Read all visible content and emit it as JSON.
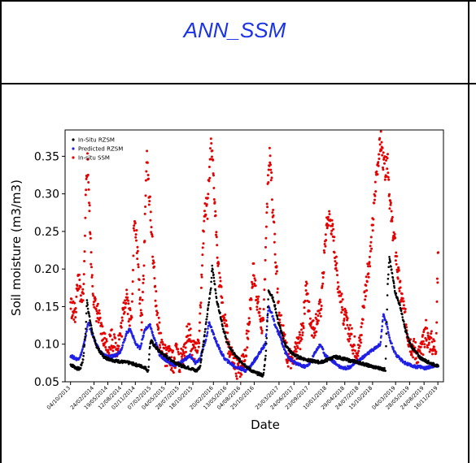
{
  "table": {
    "header": "ANN_SSM"
  },
  "chart_data": {
    "type": "scatter",
    "title": "",
    "xlabel": "Date",
    "ylabel": "Soil moisture (m3/m3)",
    "ylim": [
      0.05,
      0.385
    ],
    "xlim": [
      "2013-09-01",
      "2019-12-20"
    ],
    "yticks": [
      0.05,
      0.1,
      0.15,
      0.2,
      0.25,
      0.3,
      0.35
    ],
    "ytick_labels": [
      "0.05",
      "0.10",
      "0.15",
      "0.20",
      "0.25",
      "0.30",
      "0.35"
    ],
    "xticks": [
      "2013-10-04",
      "2014-02-24",
      "2014-05-19",
      "2014-08-12",
      "2014-11-02",
      "2015-02-07",
      "2015-05-04",
      "2015-07-28",
      "2015-10-18",
      "2016-02-20",
      "2016-05-13",
      "2016-08-04",
      "2016-10-25",
      "2017-03-25",
      "2017-06-24",
      "2017-09-23",
      "2018-01-10",
      "2018-04-29",
      "2018-07-24",
      "2018-10-15",
      "2019-03-04",
      "2019-05-28",
      "2019-08-24",
      "2019-11-16"
    ],
    "xtick_labels": [
      "04/10/2013",
      "24/02/2014",
      "19/05/2014",
      "12/08/2014",
      "02/11/2014",
      "07/02/2015",
      "04/05/2015",
      "28/07/2015",
      "18/10/2015",
      "20/02/2016",
      "13/05/2016",
      "04/08/2016",
      "25/10/2016",
      "25/03/2017",
      "24/06/2017",
      "23/09/2017",
      "10/01/2018",
      "29/04/2018",
      "24/07/2018",
      "15/10/2018",
      "04/03/2019",
      "28/05/2019",
      "24/08/2019",
      "16/11/2019"
    ],
    "legend_position": "top-left",
    "grid": false,
    "series": [
      {
        "name": "In-Situ RZSM",
        "color": "#000000",
        "marker_size": 1.3,
        "x": [
          "2013-10-04",
          "2013-10-20",
          "2013-11-10",
          "2013-12-01",
          "2013-12-20",
          "2014-01-05",
          "2014-01-12",
          "2014-01-20",
          "2014-02-01",
          "2014-02-15",
          "2014-03-05",
          "2014-04-01",
          "2014-05-01",
          "2014-06-01",
          "2014-07-01",
          "2014-08-01",
          "2014-09-01",
          "2014-10-01",
          "2014-11-01",
          "2014-12-01",
          "2015-01-01",
          "2015-01-20",
          "2015-01-28",
          "2015-02-05",
          "2015-02-20",
          "2015-03-10",
          "2015-04-01",
          "2015-05-01",
          "2015-06-01",
          "2015-07-01",
          "2015-08-01",
          "2015-09-01",
          "2015-10-01",
          "2015-10-25",
          "2015-11-05",
          "2015-12-01",
          "2015-12-20",
          "2016-01-05",
          "2016-01-20",
          "2016-02-05",
          "2016-02-12",
          "2016-02-25",
          "2016-03-10",
          "2016-04-01",
          "2016-04-20",
          "2016-05-10",
          "2016-06-01",
          "2016-07-01",
          "2016-08-01",
          "2016-09-01",
          "2016-10-01",
          "2016-11-01",
          "2016-12-01",
          "2016-12-20",
          "2017-01-05",
          "2017-01-20",
          "2017-02-10",
          "2017-03-01",
          "2017-03-20",
          "2017-04-10",
          "2017-05-01",
          "2017-06-01",
          "2017-07-01",
          "2017-08-01",
          "2017-09-01",
          "2017-10-01",
          "2017-11-01",
          "2017-12-01",
          "2018-01-01",
          "2018-02-01",
          "2018-03-01",
          "2018-04-01",
          "2018-05-01",
          "2018-06-01",
          "2018-07-01",
          "2018-08-01",
          "2018-09-01",
          "2018-10-01",
          "2018-11-01",
          "2018-12-01",
          "2018-12-15",
          "2019-01-01",
          "2019-01-15",
          "2019-01-25",
          "2019-02-10",
          "2019-03-01",
          "2019-04-01",
          "2019-05-01",
          "2019-06-01",
          "2019-07-01",
          "2019-08-01",
          "2019-09-01",
          "2019-10-01",
          "2019-11-01",
          "2019-11-20"
        ],
        "y": [
          0.073,
          0.071,
          0.068,
          0.067,
          0.08,
          0.12,
          0.16,
          0.145,
          0.13,
          0.115,
          0.1,
          0.09,
          0.082,
          0.08,
          0.078,
          0.077,
          0.076,
          0.075,
          0.073,
          0.071,
          0.069,
          0.064,
          0.095,
          0.105,
          0.1,
          0.095,
          0.09,
          0.085,
          0.08,
          0.076,
          0.072,
          0.07,
          0.068,
          0.066,
          0.064,
          0.07,
          0.1,
          0.125,
          0.15,
          0.175,
          0.205,
          0.185,
          0.16,
          0.14,
          0.12,
          0.105,
          0.095,
          0.085,
          0.078,
          0.072,
          0.066,
          0.062,
          0.06,
          0.058,
          0.09,
          0.17,
          0.165,
          0.15,
          0.13,
          0.115,
          0.1,
          0.09,
          0.085,
          0.082,
          0.08,
          0.078,
          0.077,
          0.076,
          0.078,
          0.081,
          0.083,
          0.082,
          0.08,
          0.078,
          0.077,
          0.075,
          0.073,
          0.071,
          0.069,
          0.068,
          0.067,
          0.066,
          0.18,
          0.215,
          0.195,
          0.17,
          0.15,
          0.12,
          0.1,
          0.09,
          0.082,
          0.078,
          0.075,
          0.072,
          0.07
        ]
      },
      {
        "name": "Predicted RZSM",
        "color": "#1f1fe6",
        "marker_size": 1.3,
        "x": [
          "2013-10-04",
          "2013-10-25",
          "2013-11-15",
          "2013-12-05",
          "2013-12-25",
          "2014-01-08",
          "2014-01-20",
          "2014-02-01",
          "2014-02-20",
          "2014-03-10",
          "2014-04-01",
          "2014-05-01",
          "2014-06-01",
          "2014-07-01",
          "2014-08-01",
          "2014-08-20",
          "2014-09-10",
          "2014-10-01",
          "2014-10-20",
          "2014-11-05",
          "2014-12-01",
          "2015-01-01",
          "2015-02-01",
          "2015-02-20",
          "2015-03-10",
          "2015-04-01",
          "2015-05-01",
          "2015-06-01",
          "2015-07-01",
          "2015-08-01",
          "2015-09-01",
          "2015-10-01",
          "2015-11-01",
          "2015-12-01",
          "2015-12-20",
          "2016-01-10",
          "2016-01-25",
          "2016-02-10",
          "2016-02-25",
          "2016-03-15",
          "2016-04-05",
          "2016-05-01",
          "2016-06-01",
          "2016-07-01",
          "2016-08-01",
          "2016-09-01",
          "2016-10-01",
          "2016-11-01",
          "2016-12-01",
          "2017-01-01",
          "2017-01-20",
          "2017-02-10",
          "2017-03-01",
          "2017-04-01",
          "2017-05-01",
          "2017-06-01",
          "2017-07-01",
          "2017-08-01",
          "2017-09-01",
          "2017-10-01",
          "2017-11-01",
          "2017-12-01",
          "2018-01-01",
          "2018-02-01",
          "2018-03-01",
          "2018-04-01",
          "2018-05-01",
          "2018-06-01",
          "2018-07-01",
          "2018-08-01",
          "2018-09-01",
          "2018-10-01",
          "2018-11-01",
          "2018-12-01",
          "2018-12-20",
          "2019-01-10",
          "2019-01-25",
          "2019-02-15",
          "2019-03-10",
          "2019-04-01",
          "2019-05-01",
          "2019-06-01",
          "2019-07-01",
          "2019-08-01",
          "2019-09-01",
          "2019-10-01",
          "2019-11-01",
          "2019-11-20"
        ],
        "y": [
          0.085,
          0.082,
          0.08,
          0.085,
          0.1,
          0.115,
          0.13,
          0.12,
          0.11,
          0.1,
          0.09,
          0.085,
          0.083,
          0.085,
          0.09,
          0.1,
          0.115,
          0.12,
          0.11,
          0.1,
          0.095,
          0.12,
          0.125,
          0.11,
          0.1,
          0.085,
          0.08,
          0.075,
          0.072,
          0.075,
          0.08,
          0.085,
          0.075,
          0.08,
          0.095,
          0.11,
          0.13,
          0.12,
          0.11,
          0.1,
          0.09,
          0.08,
          0.075,
          0.07,
          0.068,
          0.065,
          0.07,
          0.08,
          0.09,
          0.1,
          0.15,
          0.14,
          0.125,
          0.11,
          0.09,
          0.08,
          0.075,
          0.072,
          0.07,
          0.075,
          0.09,
          0.1,
          0.085,
          0.08,
          0.075,
          0.07,
          0.068,
          0.07,
          0.075,
          0.08,
          0.085,
          0.09,
          0.095,
          0.1,
          0.14,
          0.125,
          0.11,
          0.095,
          0.085,
          0.08,
          0.075,
          0.072,
          0.07,
          0.07,
          0.068,
          0.07,
          0.072,
          0.07
        ]
      },
      {
        "name": "In-situ SSM",
        "color": "#e60000",
        "marker_size": 1.5,
        "x": [
          "2013-10-04",
          "2013-10-15",
          "2013-11-01",
          "2013-11-20",
          "2013-12-10",
          "2013-12-25",
          "2014-01-08",
          "2014-01-15",
          "2014-01-25",
          "2014-02-05",
          "2014-02-15",
          "2014-03-01",
          "2014-03-20",
          "2014-04-05",
          "2014-04-20",
          "2014-05-05",
          "2014-05-20",
          "2014-06-10",
          "2014-06-25",
          "2014-07-10",
          "2014-07-25",
          "2014-08-10",
          "2014-08-25",
          "2014-09-10",
          "2014-09-25",
          "2014-10-10",
          "2014-10-25",
          "2014-11-10",
          "2014-11-25",
          "2014-12-10",
          "2014-12-25",
          "2015-01-10",
          "2015-01-25",
          "2015-02-10",
          "2015-02-25",
          "2015-03-10",
          "2015-03-25",
          "2015-04-10",
          "2015-04-25",
          "2015-05-10",
          "2015-05-25",
          "2015-06-10",
          "2015-06-25",
          "2015-07-10",
          "2015-07-25",
          "2015-08-10",
          "2015-08-25",
          "2015-09-10",
          "2015-09-25",
          "2015-10-10",
          "2015-10-25",
          "2015-11-10",
          "2015-11-25",
          "2015-12-10",
          "2015-12-25",
          "2016-01-05",
          "2016-01-15",
          "2016-01-25",
          "2016-02-05",
          "2016-02-15",
          "2016-02-25",
          "2016-03-05",
          "2016-03-15",
          "2016-03-25",
          "2016-04-05",
          "2016-04-20",
          "2016-05-05",
          "2016-05-20",
          "2016-06-05",
          "2016-06-20",
          "2016-07-05",
          "2016-07-20",
          "2016-08-05",
          "2016-08-20",
          "2016-09-05",
          "2016-09-20",
          "2016-10-05",
          "2016-10-20",
          "2016-11-05",
          "2016-11-20",
          "2016-12-05",
          "2016-12-20",
          "2017-01-05",
          "2017-01-15",
          "2017-01-25",
          "2017-02-05",
          "2017-02-15",
          "2017-03-01",
          "2017-03-15",
          "2017-04-01",
          "2017-04-20",
          "2017-05-05",
          "2017-05-20",
          "2017-06-05",
          "2017-06-20",
          "2017-07-05",
          "2017-07-20",
          "2017-08-05",
          "2017-08-20",
          "2017-09-05",
          "2017-09-20",
          "2017-10-05",
          "2017-10-20",
          "2017-11-05",
          "2017-11-20",
          "2017-12-05",
          "2017-12-20",
          "2018-01-05",
          "2018-01-20",
          "2018-02-05",
          "2018-02-20",
          "2018-03-05",
          "2018-03-20",
          "2018-04-05",
          "2018-04-20",
          "2018-05-05",
          "2018-05-20",
          "2018-06-05",
          "2018-06-20",
          "2018-07-05",
          "2018-07-20",
          "2018-08-05",
          "2018-08-20",
          "2018-09-05",
          "2018-09-20",
          "2018-10-05",
          "2018-10-20",
          "2018-11-05",
          "2018-11-20",
          "2018-12-05",
          "2018-12-20",
          "2019-01-05",
          "2019-01-15",
          "2019-01-25",
          "2019-02-05",
          "2019-02-15",
          "2019-03-01",
          "2019-03-15",
          "2019-04-01",
          "2019-04-20",
          "2019-05-05",
          "2019-05-20",
          "2019-06-05",
          "2019-06-20",
          "2019-07-05",
          "2019-07-20",
          "2019-08-05",
          "2019-08-20",
          "2019-09-05",
          "2019-09-20",
          "2019-10-05",
          "2019-10-20",
          "2019-11-05",
          "2019-11-20"
        ],
        "y": [
          0.155,
          0.145,
          0.14,
          0.19,
          0.15,
          0.185,
          0.33,
          0.34,
          0.3,
          0.22,
          0.18,
          0.15,
          0.14,
          0.12,
          0.11,
          0.1,
          0.095,
          0.11,
          0.1,
          0.095,
          0.105,
          0.12,
          0.15,
          0.17,
          0.14,
          0.13,
          0.26,
          0.24,
          0.18,
          0.13,
          0.21,
          0.35,
          0.3,
          0.25,
          0.19,
          0.15,
          0.12,
          0.1,
          0.09,
          0.08,
          0.085,
          0.08,
          0.075,
          0.09,
          0.075,
          0.08,
          0.085,
          0.11,
          0.12,
          0.1,
          0.09,
          0.095,
          0.11,
          0.18,
          0.27,
          0.28,
          0.28,
          0.32,
          0.36,
          0.34,
          0.3,
          0.26,
          0.23,
          0.19,
          0.17,
          0.14,
          0.12,
          0.1,
          0.085,
          0.075,
          0.07,
          0.065,
          0.07,
          0.08,
          0.095,
          0.12,
          0.16,
          0.2,
          0.17,
          0.15,
          0.13,
          0.12,
          0.25,
          0.3,
          0.35,
          0.33,
          0.28,
          0.23,
          0.18,
          0.13,
          0.11,
          0.095,
          0.085,
          0.08,
          0.075,
          0.09,
          0.1,
          0.11,
          0.13,
          0.18,
          0.15,
          0.13,
          0.12,
          0.13,
          0.14,
          0.15,
          0.2,
          0.25,
          0.27,
          0.26,
          0.24,
          0.21,
          0.18,
          0.16,
          0.14,
          0.13,
          0.12,
          0.11,
          0.1,
          0.095,
          0.09,
          0.11,
          0.15,
          0.18,
          0.2,
          0.23,
          0.27,
          0.32,
          0.35,
          0.37,
          0.34,
          0.33,
          0.35,
          0.3,
          0.27,
          0.25,
          0.23,
          0.2,
          0.17,
          0.15,
          0.13,
          0.11,
          0.1,
          0.095,
          0.09,
          0.085,
          0.09,
          0.1,
          0.12,
          0.1,
          0.105,
          0.095,
          0.1,
          0.245
        ]
      }
    ]
  }
}
